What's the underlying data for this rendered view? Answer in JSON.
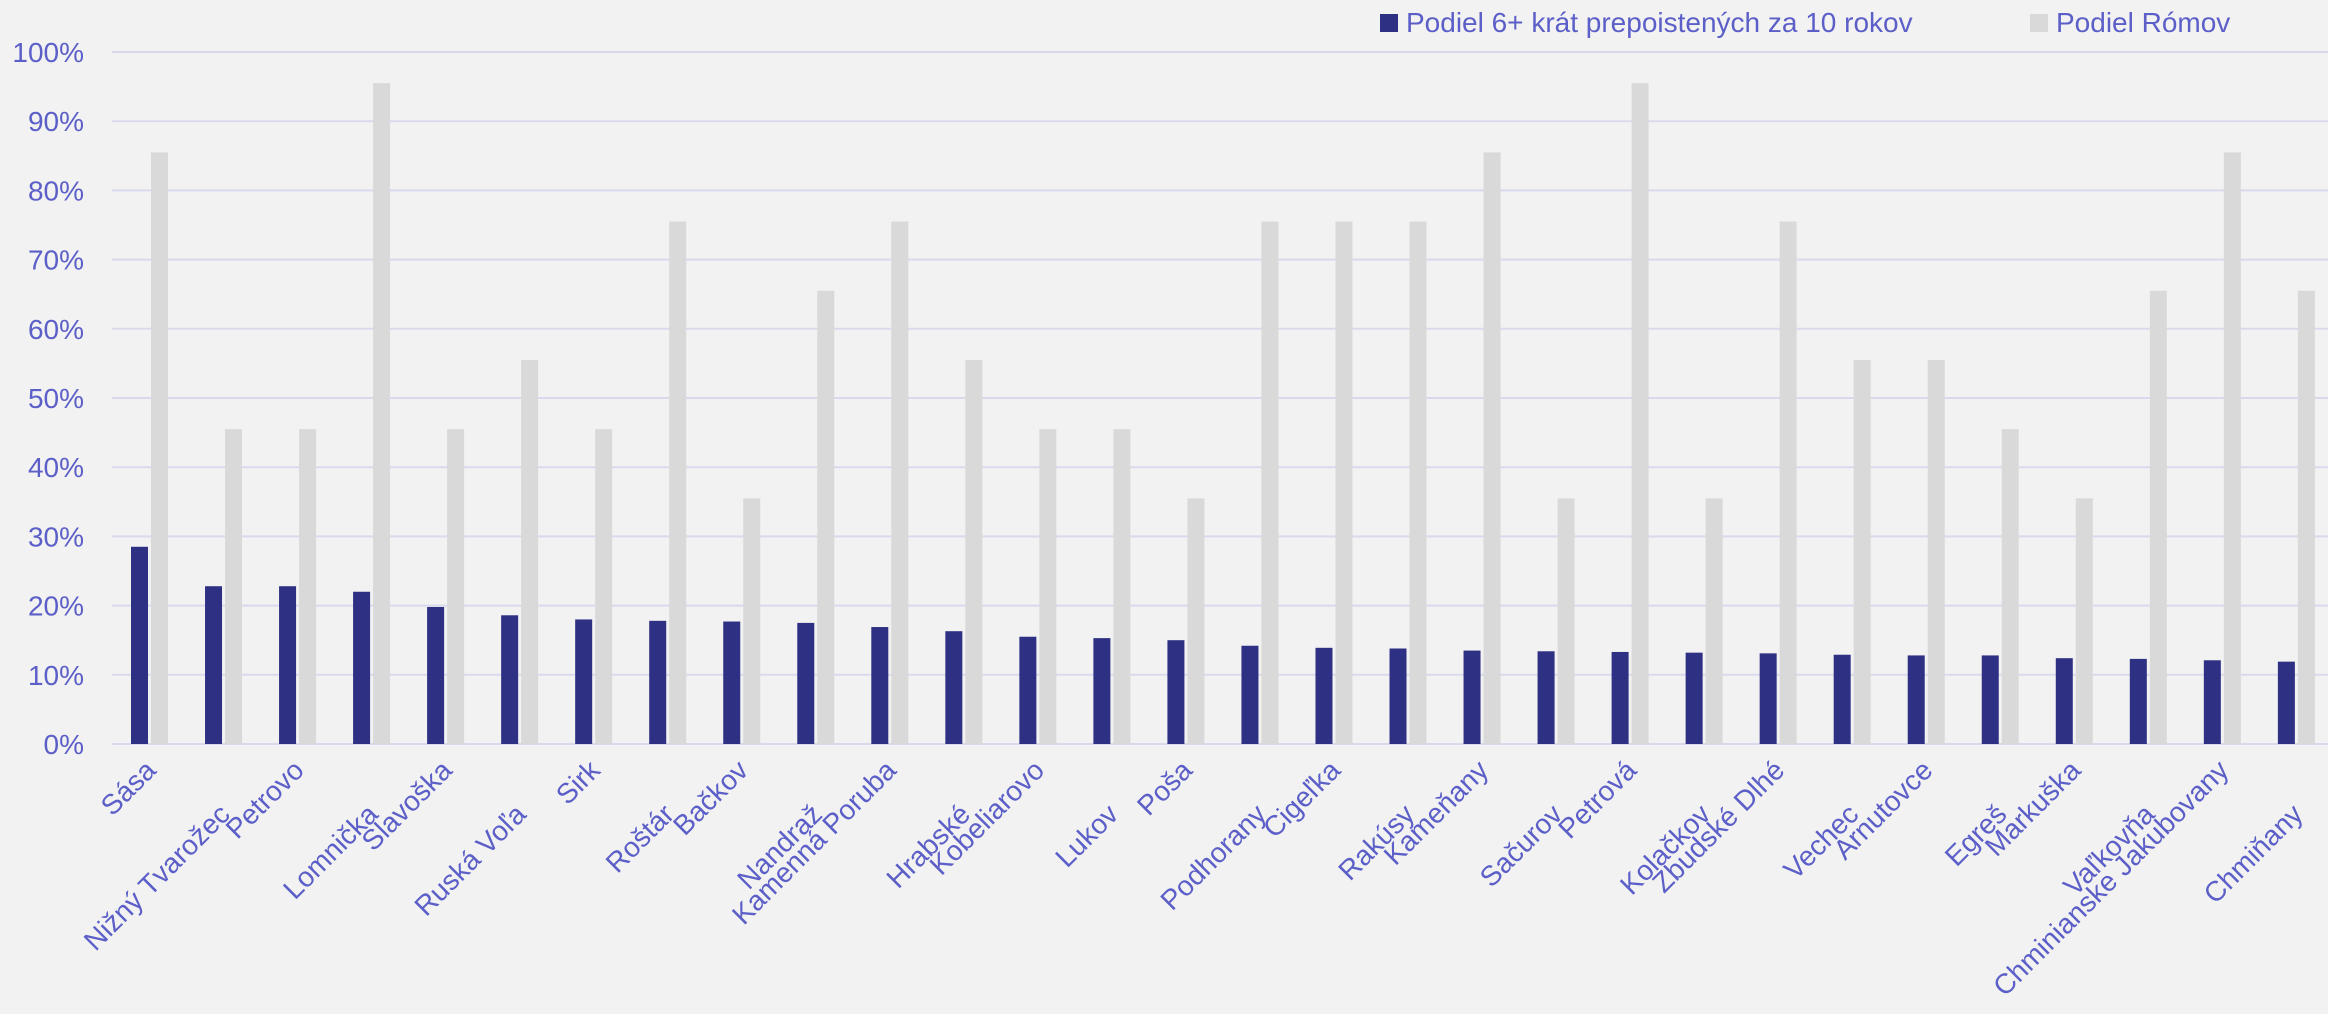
{
  "chart_data": {
    "type": "bar",
    "title": "",
    "xlabel": "",
    "ylabel": "",
    "ylim": [
      0,
      100
    ],
    "y_ticks": [
      "0%",
      "10%",
      "20%",
      "30%",
      "40%",
      "50%",
      "60%",
      "70%",
      "80%",
      "90%",
      "100%"
    ],
    "grid": true,
    "legend_position": "top-right",
    "categories": [
      "Sása",
      "Nižný Tvarožec",
      "Petrovo",
      "Lomnička",
      "Slavoška",
      "Ruská Voľa",
      "Sirk",
      "Roštár",
      "Bačkov",
      "Nandraž",
      "Kamenná Poruba",
      "Hrabské",
      "Kobeliarovo",
      "Lukov",
      "Poša",
      "Podhorany",
      "Cigeľka",
      "Rakúsy",
      "Kameňany",
      "Sačurov",
      "Petrová",
      "Kolačkov",
      "Zbudské Dlhé",
      "Vechec",
      "Arnutovce",
      "Egreš",
      "Markuška",
      "Vaľkovňa",
      "Chminianske Jakubovany",
      "Chmiňany"
    ],
    "series": [
      {
        "name": "Podiel 6+ krát prepoistených za 10 rokov",
        "color": "#2e3083",
        "values": [
          28.5,
          22.8,
          22.8,
          22.0,
          19.8,
          18.6,
          18.0,
          17.8,
          17.7,
          17.5,
          16.9,
          16.3,
          15.5,
          15.3,
          15.0,
          14.2,
          13.9,
          13.8,
          13.5,
          13.4,
          13.3,
          13.2,
          13.1,
          12.9,
          12.8,
          12.8,
          12.4,
          12.3,
          12.1,
          11.9
        ]
      },
      {
        "name": "Podiel Rómov",
        "color": "#d9d9d9",
        "values": [
          85.5,
          45.5,
          45.5,
          95.5,
          45.5,
          55.5,
          45.5,
          75.5,
          35.5,
          65.5,
          75.5,
          55.5,
          45.5,
          45.5,
          35.5,
          75.5,
          75.5,
          75.5,
          85.5,
          35.5,
          95.5,
          35.5,
          75.5,
          55.5,
          55.5,
          45.5,
          35.5,
          65.5,
          85.5,
          65.5
        ]
      }
    ]
  }
}
